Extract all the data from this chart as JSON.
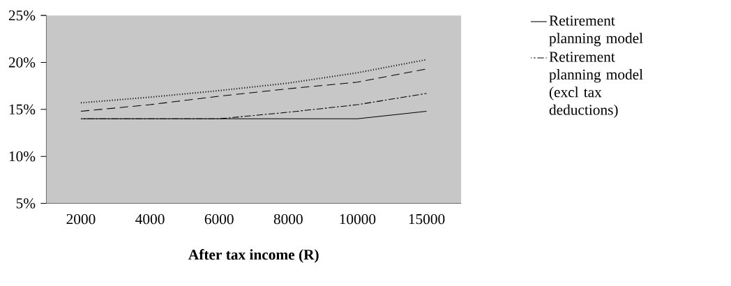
{
  "chart_data": {
    "type": "line",
    "xlabel": "After tax income (R)",
    "categories": [
      "2000",
      "4000",
      "6000",
      "8000",
      "10000",
      "15000"
    ],
    "series": [
      {
        "name": "Retirement planning model",
        "color": "#000000",
        "line_style": "solid",
        "values": [
          14,
          14,
          14,
          14,
          14,
          14.8
        ]
      },
      {
        "color": "#000000",
        "line_style": "dotted",
        "values": [
          15.7,
          16.3,
          17.0,
          17.8,
          18.9,
          20.3
        ]
      },
      {
        "color": "#000000",
        "line_style": "dashed",
        "values": [
          14.8,
          15.5,
          16.4,
          17.2,
          17.9,
          19.3
        ]
      },
      {
        "name": "Retirement planning model (excl tax deductions)",
        "color": "#000000",
        "line_style": "dashdotted",
        "values": [
          14,
          14,
          14,
          14.7,
          15.5,
          16.7
        ]
      }
    ],
    "ylim": [
      5,
      25
    ],
    "yticks": [
      {
        "value": 5,
        "label": "5%"
      },
      {
        "value": 10,
        "label": "10%"
      },
      {
        "value": 15,
        "label": "15%"
      },
      {
        "value": 20,
        "label": "20%"
      },
      {
        "value": 25,
        "label": "25%"
      }
    ],
    "grid": false,
    "legend": "right",
    "marker": "none"
  }
}
